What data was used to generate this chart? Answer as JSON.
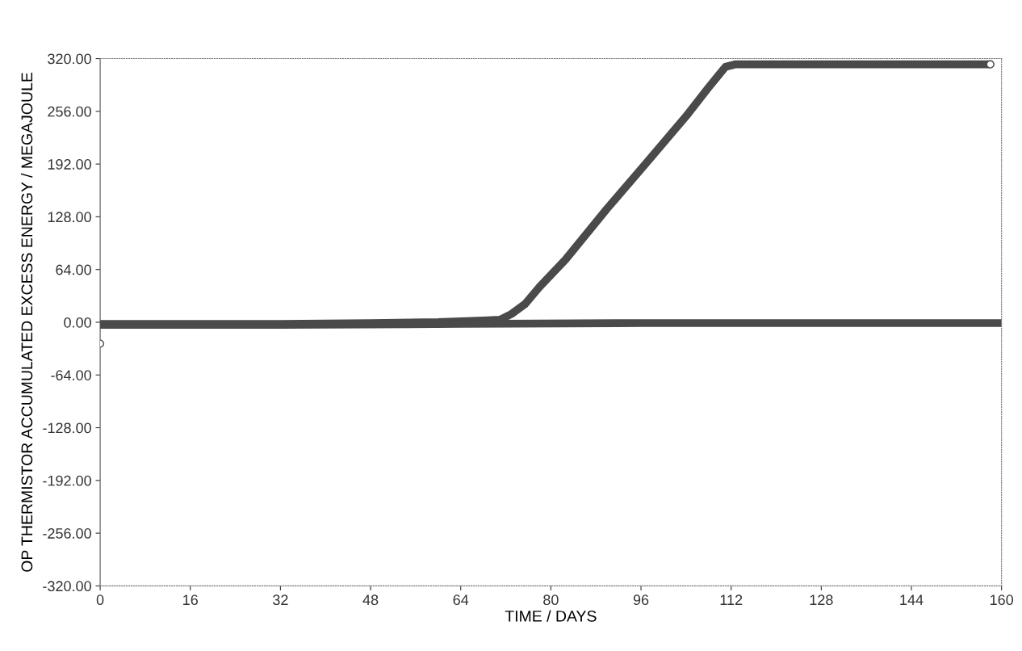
{
  "chart_data": {
    "type": "line",
    "xlabel": "TIME / DAYS",
    "ylabel": "OP THERMISTOR ACCUMULATED EXCESS ENERGY / MEGAJOULE",
    "xlim": [
      0,
      160
    ],
    "xticks": [
      0,
      16,
      32,
      48,
      64,
      80,
      96,
      112,
      128,
      144,
      160
    ],
    "ylim": [
      -320,
      320
    ],
    "yticks": [
      {
        "value": -320,
        "label": "-320.00"
      },
      {
        "value": -256,
        "label": "-256.00"
      },
      {
        "value": -192,
        "label": "-192.00"
      },
      {
        "value": -128,
        "label": "-128.00"
      },
      {
        "value": -64,
        "label": "-64.00"
      },
      {
        "value": 0,
        "label": "0.00"
      },
      {
        "value": 64,
        "label": "64.00"
      },
      {
        "value": 128,
        "label": "128.00"
      },
      {
        "value": 192,
        "label": "192.00"
      },
      {
        "value": 256,
        "label": "256.00"
      },
      {
        "value": 320,
        "label": "320.00"
      }
    ],
    "grid": false,
    "legend": false,
    "line_style": "solid",
    "marker": "none",
    "series": [
      {
        "color": "#4a4a4a",
        "x": [
          0,
          16,
          32,
          48,
          60,
          64,
          68,
          71,
          73,
          75.4,
          78,
          82.6,
          90,
          96.9,
          104,
          108,
          109.8,
          111,
          112.7,
          120,
          140,
          158
        ],
        "values": [
          -2,
          -2,
          -2,
          -1,
          0,
          1,
          2,
          3,
          10,
          22,
          43,
          76,
          138,
          193,
          250,
          285,
          300,
          310,
          313,
          313,
          313,
          313
        ]
      },
      {
        "color": "#4a4a4a",
        "x": [
          0,
          32,
          64,
          96,
          128,
          160
        ],
        "values": [
          -3,
          -3,
          -2,
          -1,
          -1,
          -1
        ]
      },
      {
        "type": "scatter",
        "color": "#4a4a4a",
        "marker": "circle",
        "x": [
          0,
          158
        ],
        "values": [
          -26,
          313
        ]
      }
    ]
  }
}
